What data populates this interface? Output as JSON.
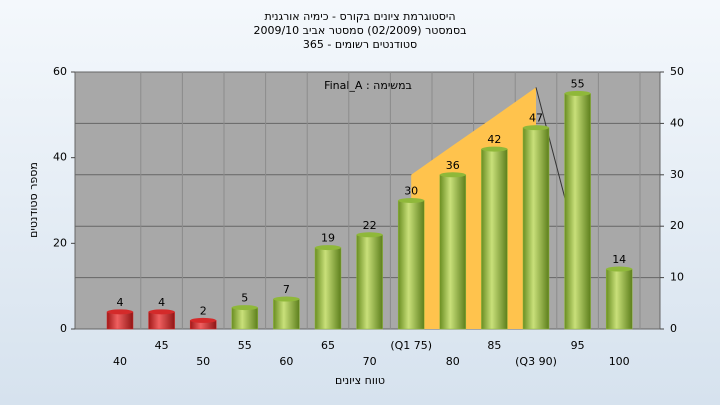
{
  "chart_data": {
    "type": "bar",
    "title": [
      "היסטוגרמת ציונים בקורס - כימיה אורגנית",
      "בסמסטר (02/2009) סמסטר אביב 2009/10",
      "סטודנטים רשומים - 365"
    ],
    "annotation": "Final_A : במשימה",
    "y_label": "מספר סטודנטים",
    "x_label": "טווח ציונים",
    "categories": [
      "40",
      "45",
      "50",
      "55",
      "60",
      "65",
      "70",
      "(Q1 75)",
      "80",
      "85",
      "(Q3 90)",
      "95",
      "100"
    ],
    "values": [
      4,
      4,
      2,
      5,
      7,
      19,
      22,
      30,
      36,
      42,
      47,
      55,
      14
    ],
    "colors": [
      "#d42a2a",
      "#d42a2a",
      "#d42a2a",
      "#8fb83a",
      "#8fb83a",
      "#8fb83a",
      "#8fb83a",
      "#8fb83a",
      "#8fb83a",
      "#8fb83a",
      "#8fb83a",
      "#8fb83a",
      "#8fb83a"
    ],
    "ylim": [
      0,
      60
    ],
    "yticks": [
      0,
      20,
      40,
      60
    ],
    "y2lim": [
      0,
      50
    ],
    "y2ticks": [
      0,
      10,
      20,
      30,
      40,
      50
    ],
    "grid": true,
    "series": [
      {
        "type": "area",
        "axis": "y2",
        "color": "#ffc34d",
        "values": [
          null,
          null,
          null,
          null,
          null,
          null,
          null,
          30,
          35.7,
          41.3,
          47,
          null,
          null
        ]
      },
      {
        "type": "line",
        "axis": "y2",
        "color": "#333333",
        "values": [
          null,
          null,
          null,
          null,
          null,
          null,
          null,
          null,
          null,
          null,
          47,
          16,
          null
        ]
      }
    ]
  }
}
